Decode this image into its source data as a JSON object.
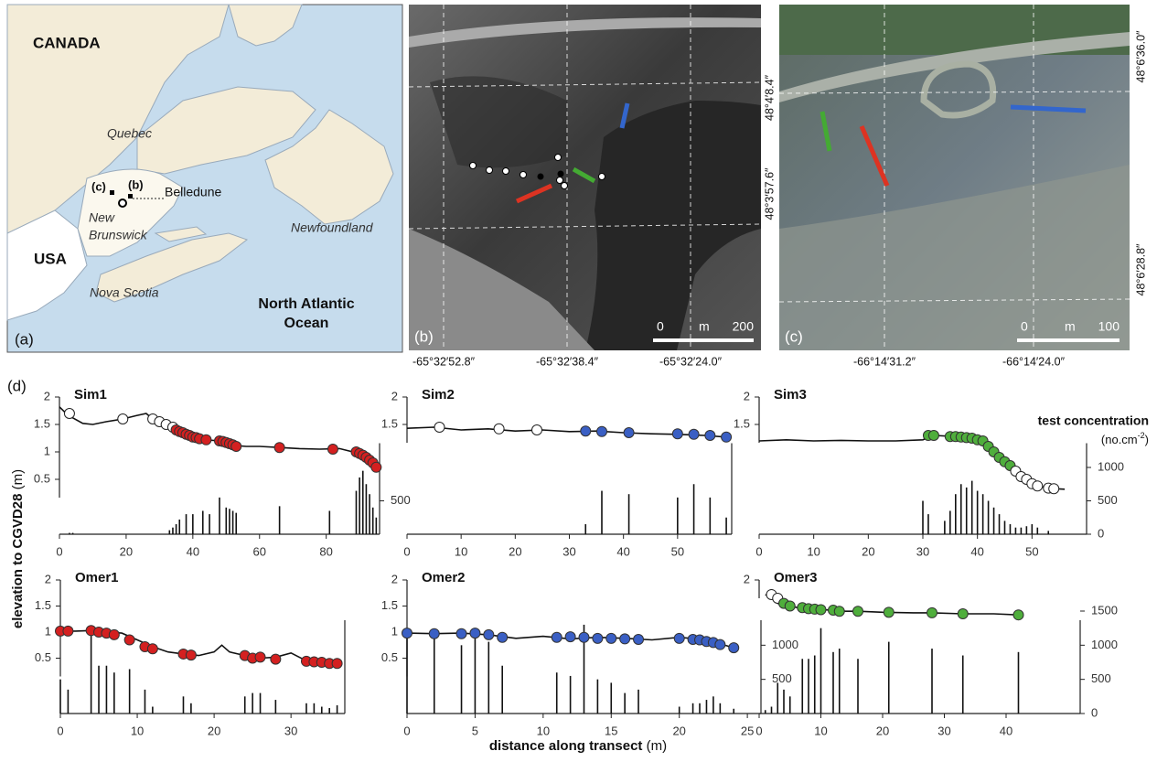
{
  "panel_a": {
    "label": "(a)",
    "places": [
      "CANADA",
      "Quebec",
      "(c)",
      "(b)",
      "Belledune",
      "New",
      "Brunswick",
      "USA",
      "Nova Scotia",
      "Newfoundland",
      "North Atlantic",
      "Ocean"
    ]
  },
  "panel_b": {
    "label": "(b)",
    "lat": [
      "48°4′8.4″",
      "48°3′57.6″"
    ],
    "lon": [
      "-65°32′52.8″",
      "-65°32′38.4″",
      "-65°32′24.0″"
    ],
    "scale": [
      "0",
      "m",
      "200"
    ]
  },
  "panel_c": {
    "label": "(c)",
    "lat": [
      "48°6′36.0″",
      "48°6′28.8″"
    ],
    "lon": [
      "-66°14′31.2″",
      "-66°14′24.0″"
    ],
    "scale": [
      "0",
      "m",
      "100"
    ]
  },
  "panel_d": {
    "label": "(d)",
    "y_label": [
      "elevation to CGVD28",
      "(m)"
    ],
    "x_label": [
      "distance along transect",
      "(m)"
    ],
    "y2_label": [
      "test concentration",
      "(no.cm",
      "-2",
      ")"
    ]
  },
  "chart_data": [
    {
      "type": "line",
      "title": "Sim1",
      "color": "#d42020",
      "xlim": [
        0,
        96
      ],
      "xticks": [
        0,
        20,
        40,
        60,
        80
      ],
      "ylim": [
        0,
        2
      ],
      "yticks": [
        0.5,
        1,
        1.5,
        2
      ],
      "y2lim": [
        0,
        1500
      ],
      "y2ticks": [
        500
      ],
      "profile": {
        "x": [
          0,
          2,
          4,
          7,
          10,
          14,
          19,
          23,
          26,
          28,
          30,
          33,
          36,
          40,
          44,
          48,
          52,
          56,
          60,
          66,
          72,
          78,
          84,
          88,
          90,
          92,
          93,
          94,
          95
        ],
        "values": [
          1.82,
          1.7,
          1.62,
          1.52,
          1.5,
          1.55,
          1.6,
          1.66,
          1.7,
          1.6,
          1.55,
          1.45,
          1.35,
          1.27,
          1.22,
          1.2,
          1.12,
          1.1,
          1.1,
          1.08,
          1.06,
          1.05,
          1.06,
          1.0,
          0.95,
          0.9,
          0.85,
          0.78,
          0.72
        ]
      },
      "samples": {
        "x": [
          3,
          19,
          28,
          30,
          32,
          34,
          35,
          36,
          37,
          38,
          39,
          40,
          41,
          42,
          44,
          48,
          49,
          50,
          51,
          52,
          53,
          66,
          82,
          89,
          90,
          91,
          92,
          93,
          94,
          95
        ],
        "values": [
          1.7,
          1.6,
          1.6,
          1.55,
          1.5,
          1.45,
          1.4,
          1.37,
          1.35,
          1.32,
          1.3,
          1.27,
          1.26,
          1.24,
          1.22,
          1.2,
          1.19,
          1.17,
          1.15,
          1.13,
          1.1,
          1.08,
          1.05,
          1.0,
          0.97,
          0.94,
          0.9,
          0.85,
          0.8,
          0.72
        ],
        "filled": [
          false,
          false,
          false,
          false,
          false,
          false,
          true,
          true,
          true,
          true,
          true,
          true,
          true,
          true,
          true,
          true,
          true,
          true,
          true,
          true,
          true,
          true,
          true,
          true,
          true,
          true,
          true,
          true,
          true,
          true
        ]
      },
      "counts": {
        "x": [
          3,
          4,
          33,
          34,
          35,
          36,
          38,
          40,
          43,
          45,
          48,
          50,
          51,
          52,
          53,
          66,
          81,
          89,
          90,
          91,
          92,
          93,
          94,
          95
        ],
        "values": [
          20,
          20,
          60,
          100,
          150,
          220,
          300,
          300,
          350,
          300,
          550,
          400,
          380,
          350,
          320,
          420,
          350,
          650,
          850,
          950,
          750,
          600,
          400,
          250
        ]
      }
    },
    {
      "type": "line",
      "title": "Sim2",
      "color": "#3a5fc4",
      "xlim": [
        0,
        60
      ],
      "xticks": [
        0,
        10,
        20,
        30,
        40,
        50
      ],
      "ylim": [
        0,
        2
      ],
      "yticks": [
        1.5,
        2
      ],
      "y2lim": [
        0,
        1500
      ],
      "y2ticks": [],
      "profile": {
        "x": [
          0,
          5,
          10,
          15,
          20,
          25,
          30,
          35,
          40,
          45,
          50,
          55,
          59
        ],
        "values": [
          1.43,
          1.45,
          1.4,
          1.42,
          1.38,
          1.4,
          1.37,
          1.38,
          1.35,
          1.33,
          1.32,
          1.3,
          1.27
        ]
      },
      "samples": {
        "x": [
          6,
          17,
          24,
          33,
          36,
          41,
          50,
          53,
          56,
          59
        ],
        "values": [
          1.45,
          1.42,
          1.4,
          1.38,
          1.37,
          1.35,
          1.33,
          1.32,
          1.3,
          1.27
        ],
        "filled": [
          false,
          false,
          false,
          true,
          true,
          true,
          true,
          true,
          true,
          true
        ]
      },
      "counts": {
        "x": [
          33,
          36,
          41,
          50,
          53,
          56,
          59
        ],
        "values": [
          150,
          650,
          600,
          550,
          750,
          550,
          250
        ]
      }
    },
    {
      "type": "line",
      "title": "Sim3",
      "color": "#4fae3c",
      "xlim": [
        0,
        60
      ],
      "xticks": [
        0,
        10,
        20,
        30,
        40,
        50
      ],
      "ylim": [
        0,
        2
      ],
      "yticks": [
        1.5,
        2
      ],
      "y2lim": [
        0,
        1500
      ],
      "y2ticks": [
        0,
        500,
        1000
      ],
      "profile": {
        "x": [
          0,
          5,
          10,
          15,
          20,
          25,
          30,
          32,
          36,
          40,
          42,
          44,
          46,
          48,
          50,
          52,
          54,
          56
        ],
        "values": [
          1.2,
          1.22,
          1.2,
          1.21,
          1.2,
          1.2,
          1.22,
          1.3,
          1.28,
          1.2,
          1.05,
          0.9,
          0.75,
          0.55,
          0.42,
          0.36,
          0.33,
          0.32
        ]
      },
      "samples": {
        "x": [
          31,
          32,
          35,
          36,
          37,
          38,
          39,
          40,
          41,
          42,
          43,
          44,
          45,
          46,
          47,
          48,
          49,
          50,
          51,
          53,
          54
        ],
        "values": [
          1.3,
          1.3,
          1.28,
          1.28,
          1.27,
          1.26,
          1.25,
          1.22,
          1.2,
          1.1,
          1.0,
          0.9,
          0.82,
          0.75,
          0.65,
          0.55,
          0.5,
          0.42,
          0.38,
          0.34,
          0.33
        ],
        "filled": [
          true,
          true,
          true,
          true,
          true,
          true,
          true,
          true,
          true,
          true,
          true,
          true,
          true,
          true,
          false,
          false,
          false,
          false,
          false,
          false,
          false
        ]
      },
      "counts": {
        "x": [
          30,
          31,
          34,
          35,
          36,
          37,
          38,
          39,
          40,
          41,
          42,
          43,
          44,
          45,
          46,
          47,
          48,
          49,
          50,
          51,
          53
        ],
        "values": [
          500,
          300,
          200,
          350,
          600,
          750,
          700,
          800,
          650,
          600,
          500,
          400,
          300,
          200,
          150,
          100,
          100,
          120,
          150,
          100,
          50
        ]
      }
    },
    {
      "type": "line",
      "title": "Omer1",
      "color": "#d42020",
      "xlim": [
        0,
        37
      ],
      "xticks": [
        0,
        10,
        20,
        30
      ],
      "ylim": [
        0,
        2
      ],
      "yticks": [
        0.5,
        1,
        1.5,
        2
      ],
      "y2lim": [
        0,
        1500
      ],
      "y2ticks": [],
      "profile": {
        "x": [
          0,
          2,
          4,
          6,
          8,
          10,
          12,
          14,
          16,
          18,
          20,
          21,
          22,
          24,
          26,
          28,
          30,
          32,
          34,
          36
        ],
        "values": [
          1.02,
          1.02,
          1.03,
          1.0,
          0.98,
          0.85,
          0.72,
          0.62,
          0.58,
          0.55,
          0.62,
          0.75,
          0.62,
          0.55,
          0.5,
          0.52,
          0.6,
          0.45,
          0.42,
          0.4
        ]
      },
      "samples": {
        "x": [
          0,
          1,
          4,
          5,
          6,
          7,
          9,
          11,
          12,
          16,
          17,
          24,
          25,
          26,
          28,
          32,
          33,
          34,
          35,
          36
        ],
        "values": [
          1.02,
          1.02,
          1.03,
          1.0,
          0.98,
          0.95,
          0.85,
          0.72,
          0.68,
          0.58,
          0.56,
          0.55,
          0.5,
          0.52,
          0.48,
          0.44,
          0.43,
          0.42,
          0.4,
          0.4
        ],
        "filled": [
          true,
          true,
          true,
          true,
          true,
          true,
          true,
          true,
          true,
          true,
          true,
          true,
          true,
          true,
          true,
          true,
          true,
          true,
          true,
          true
        ]
      },
      "counts": {
        "x": [
          0,
          1,
          4,
          5,
          6,
          7,
          9,
          11,
          12,
          16,
          17,
          24,
          25,
          26,
          28,
          32,
          33,
          34,
          35,
          36
        ],
        "values": [
          500,
          350,
          1200,
          700,
          700,
          600,
          650,
          350,
          100,
          250,
          150,
          250,
          300,
          300,
          200,
          150,
          150,
          100,
          80,
          120
        ]
      }
    },
    {
      "type": "line",
      "title": "Omer2",
      "color": "#3a5fc4",
      "xlim": [
        0,
        26
      ],
      "xticks": [
        0,
        5,
        10,
        15,
        20,
        25
      ],
      "ylim": [
        0,
        2
      ],
      "yticks": [
        0.5,
        1,
        1.5,
        2
      ],
      "y2lim": [
        0,
        1500
      ],
      "y2ticks": [
        500,
        1000
      ],
      "profile": {
        "x": [
          0,
          2,
          4,
          6,
          8,
          10,
          12,
          14,
          16,
          18,
          20,
          22,
          24
        ],
        "values": [
          0.98,
          0.97,
          0.98,
          0.95,
          0.88,
          0.92,
          0.87,
          0.9,
          0.88,
          0.85,
          0.9,
          0.85,
          0.7
        ]
      },
      "samples": {
        "x": [
          0,
          2,
          4,
          5,
          6,
          7,
          11,
          12,
          13,
          14,
          15,
          16,
          17,
          20,
          21,
          21.5,
          22,
          22.5,
          23,
          24
        ],
        "values": [
          0.98,
          0.97,
          0.97,
          0.98,
          0.95,
          0.9,
          0.9,
          0.91,
          0.9,
          0.88,
          0.88,
          0.87,
          0.86,
          0.88,
          0.86,
          0.85,
          0.82,
          0.8,
          0.76,
          0.7
        ],
        "filled": [
          true,
          true,
          true,
          true,
          true,
          true,
          true,
          true,
          true,
          true,
          true,
          true,
          true,
          true,
          true,
          true,
          true,
          true,
          true,
          true
        ]
      },
      "counts": {
        "x": [
          0,
          2,
          4,
          5,
          6,
          7,
          11,
          12,
          13,
          14,
          15,
          16,
          17,
          20,
          21,
          21.5,
          22,
          22.5,
          23,
          24
        ],
        "values": [
          1200,
          1100,
          1000,
          1100,
          1050,
          700,
          600,
          550,
          1300,
          500,
          450,
          300,
          350,
          100,
          150,
          150,
          200,
          250,
          150,
          70
        ]
      }
    },
    {
      "type": "line",
      "title": "Omer3",
      "color": "#4fae3c",
      "xlim": [
        0,
        52
      ],
      "xticks": [
        0,
        10,
        20,
        30,
        40
      ],
      "ylim": [
        0,
        2
      ],
      "yticks": [
        2
      ],
      "y2lim": [
        0,
        1500
      ],
      "y2ticks": [
        0,
        500,
        1000,
        1500
      ],
      "profile": {
        "x": [
          1,
          2,
          3,
          5,
          7,
          9,
          10,
          12,
          14,
          16,
          20,
          25,
          28,
          33,
          38,
          42
        ],
        "values": [
          1.72,
          1.65,
          1.55,
          1.5,
          1.45,
          1.45,
          1.43,
          1.42,
          1.4,
          1.4,
          1.38,
          1.37,
          1.37,
          1.35,
          1.35,
          1.33
        ]
      },
      "samples": {
        "x": [
          2,
          3,
          4,
          5,
          7,
          8,
          9,
          10,
          12,
          13,
          16,
          21,
          28,
          33,
          42
        ],
        "values": [
          1.72,
          1.65,
          1.55,
          1.5,
          1.47,
          1.45,
          1.44,
          1.43,
          1.42,
          1.4,
          1.4,
          1.38,
          1.37,
          1.35,
          1.33
        ],
        "filled": [
          false,
          false,
          true,
          true,
          true,
          true,
          true,
          true,
          true,
          true,
          true,
          true,
          true,
          true,
          true
        ]
      },
      "counts": {
        "x": [
          1,
          2,
          3,
          4,
          5,
          7,
          8,
          9,
          10,
          12,
          13,
          16,
          21,
          28,
          33,
          42
        ],
        "values": [
          50,
          100,
          450,
          350,
          250,
          800,
          800,
          850,
          1250,
          900,
          950,
          800,
          1050,
          950,
          850,
          900
        ]
      }
    }
  ]
}
